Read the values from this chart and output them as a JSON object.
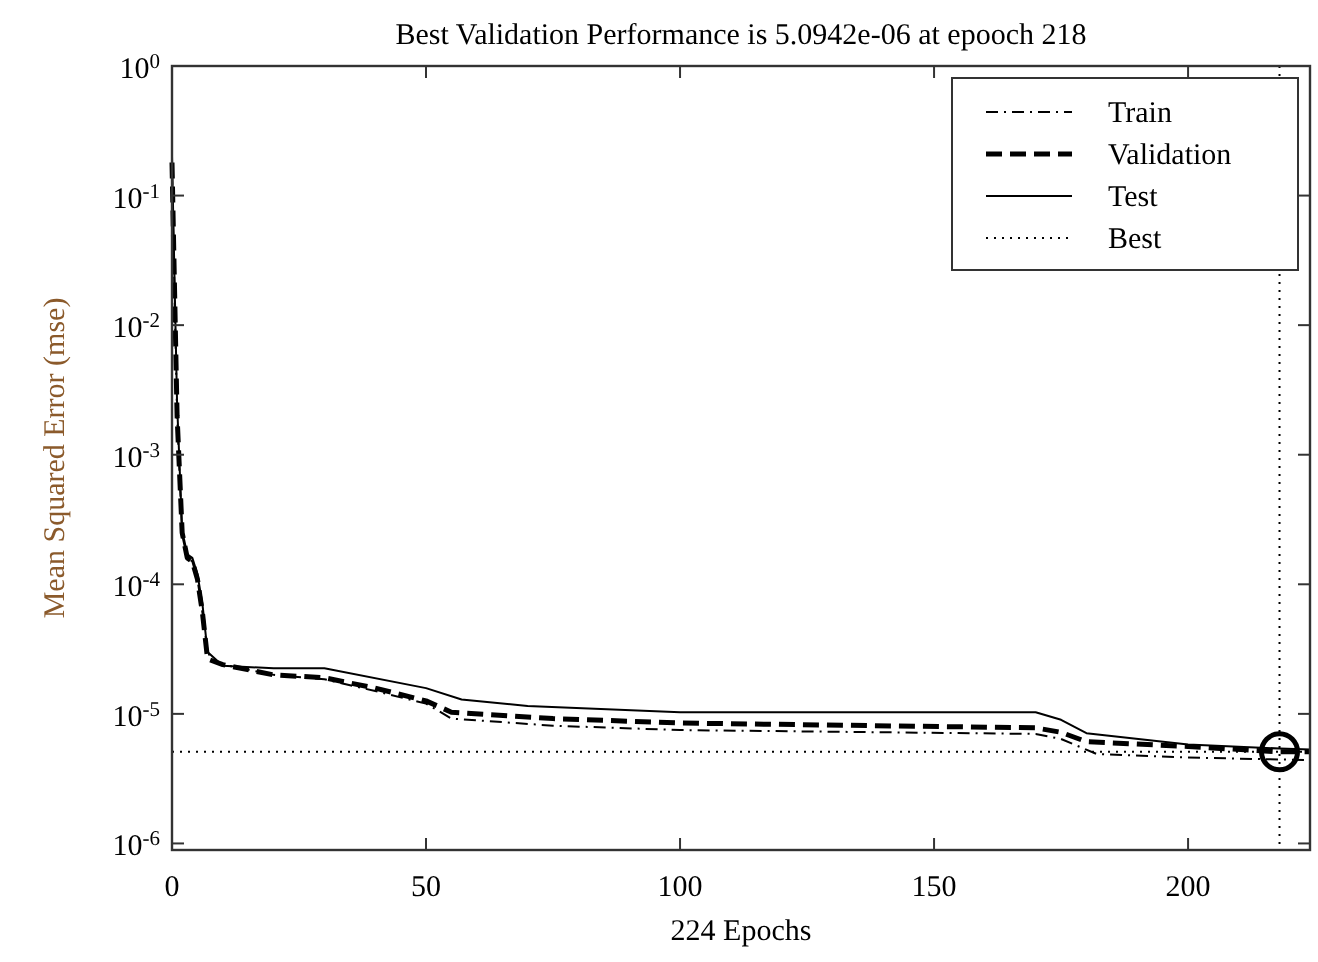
{
  "chart_data": {
    "type": "line",
    "title": "Best Validation Performance is 5.0942e-06 at epooch 218",
    "xlabel": "224 Epochs",
    "ylabel": "Mean Squared Error (mse)",
    "log": "y",
    "xlim": [
      0,
      224
    ],
    "xticks": [
      0,
      50,
      100,
      150,
      200
    ],
    "ylim": [
      8.9e-07,
      1
    ],
    "yticks": [
      {
        "value": 1,
        "label": "10$^{0}$"
      },
      {
        "value": 0.1,
        "label": "10$^{-1}$"
      },
      {
        "value": 0.01,
        "label": "10$^{-2}$"
      },
      {
        "value": 0.001,
        "label": "10$^{-3}$"
      },
      {
        "value": 0.0001,
        "label": "10$^{-4}$"
      },
      {
        "value": 1e-05,
        "label": "10$^{-5}$"
      },
      {
        "value": 1e-06,
        "label": "10$^{-6}$"
      }
    ],
    "grid": false,
    "legend": "top right",
    "series": [
      {
        "name": "Train",
        "color": "#000000",
        "line_style": "dashdot",
        "x": [
          0,
          1,
          2,
          3,
          4,
          5,
          6,
          7,
          8,
          10,
          20,
          30,
          40,
          50,
          55,
          75,
          100,
          170,
          175,
          182,
          200,
          224
        ],
        "values": [
          0.15,
          0.002,
          0.00024,
          0.00016,
          0.00015,
          0.00011,
          6e-05,
          3e-05,
          2.6e-05,
          2.4e-05,
          2e-05,
          1.85e-05,
          1.5e-05,
          1.2e-05,
          9.2e-06,
          8.1e-06,
          7.5e-06,
          7e-06,
          6.4e-06,
          4.9e-06,
          4.6e-06,
          4.4e-06
        ]
      },
      {
        "name": "Validation",
        "color": "#000000",
        "line_style": "dashed",
        "x": [
          0,
          1,
          2,
          3,
          4,
          5,
          6,
          7,
          10,
          20,
          30,
          40,
          50,
          55,
          75,
          100,
          170,
          175,
          180,
          200,
          218,
          224
        ],
        "values": [
          0.18,
          0.002,
          0.00025,
          0.00016,
          0.00015,
          0.00011,
          6e-05,
          2.65e-05,
          2.4e-05,
          2e-05,
          1.9e-05,
          1.58e-05,
          1.26e-05,
          1.03e-05,
          9.2e-06,
          8.5e-06,
          7.8e-06,
          7.2e-06,
          6.1e-06,
          5.6e-06,
          5.0942e-06,
          5.1e-06
        ]
      },
      {
        "name": "Test",
        "color": "#000000",
        "line_style": "solid",
        "x": [
          0,
          1,
          2,
          3,
          4,
          5,
          6,
          7,
          10,
          20,
          30,
          50,
          57,
          70,
          100,
          170,
          175,
          180,
          200,
          218,
          224
        ],
        "values": [
          0.2,
          0.0025,
          0.00026,
          0.00017,
          0.00016,
          0.00012,
          7e-05,
          3e-05,
          2.35e-05,
          2.25e-05,
          2.25e-05,
          1.58e-05,
          1.29e-05,
          1.15e-05,
          1.03e-05,
          1.03e-05,
          9e-06,
          7.1e-06,
          5.8e-06,
          5.4e-06,
          5.3e-06
        ]
      },
      {
        "type": "scatter",
        "color": "#000000",
        "marker": "circle",
        "x": [
          218
        ],
        "values": [
          5.0942e-06
        ]
      }
    ],
    "ref_lines": [
      {
        "axis": "y",
        "value": 5.0942e-06,
        "label": "Best",
        "line_style": "dotted",
        "color": "#000000"
      },
      {
        "axis": "x",
        "value": 218,
        "line_style": "dotted",
        "color": "#000000"
      }
    ]
  }
}
